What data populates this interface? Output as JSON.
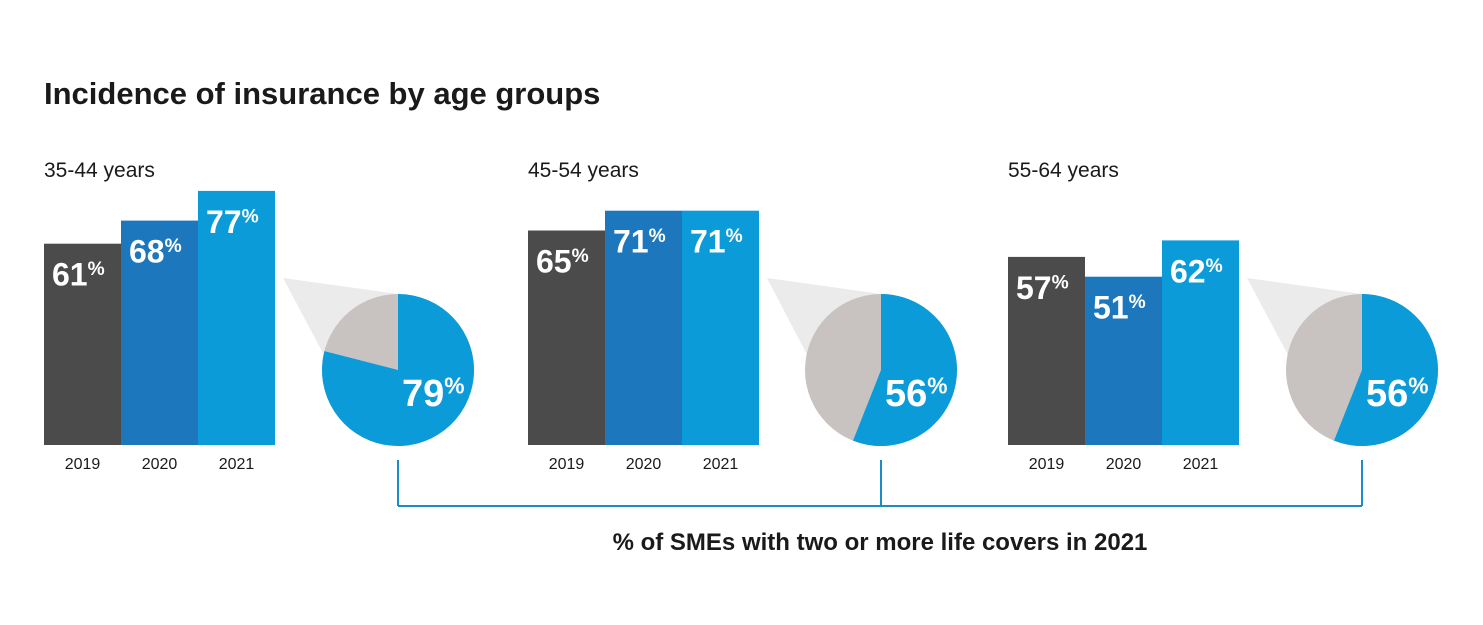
{
  "title": "Incidence of insurance by age groups",
  "bracket_label": "% of SMEs with two or more life covers in 2021",
  "colors": {
    "y2019": "#4a4b4a",
    "y2020": "#1c77bc",
    "y2021": "#0b9bd8",
    "pie_rest": "#c8c3c1",
    "callout": "#ebebeb",
    "bracket": "#1a8cc8"
  },
  "chart_data": {
    "type": "bar",
    "categories": [
      "2019",
      "2020",
      "2021"
    ],
    "unit": "%",
    "groups": [
      {
        "label": "35-44 years",
        "values": [
          61,
          68,
          77
        ],
        "pie_value": 79
      },
      {
        "label": "45-54 years",
        "values": [
          65,
          71,
          71
        ],
        "pie_value": 56
      },
      {
        "label": "55-64 years",
        "values": [
          57,
          51,
          62
        ],
        "pie_value": 56
      }
    ]
  }
}
